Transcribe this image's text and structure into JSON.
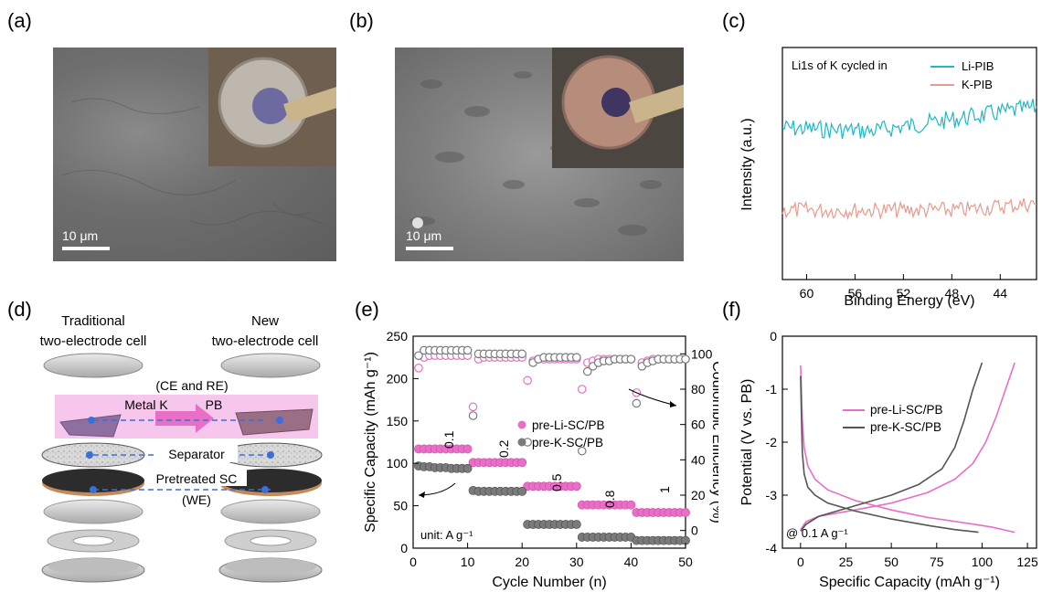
{
  "panels": {
    "a": {
      "label": "(a)",
      "scale": "10 μm"
    },
    "b": {
      "label": "(b)",
      "scale": "10 μm"
    },
    "c": {
      "label": "(c)"
    },
    "d": {
      "label": "(d)"
    },
    "e": {
      "label": "(e)"
    },
    "f": {
      "label": "(f)"
    }
  },
  "diagram": {
    "traditional": "Traditional",
    "traditional2": "two-electrode cell",
    "new": "New",
    "new2": "two-electrode cell",
    "ce_re": "(CE and RE)",
    "metal_k": "Metal K",
    "pb": "PB",
    "separator": "Separator",
    "pretreated": "Pretreated SC",
    "we": "(WE)"
  },
  "chart_data": [
    {
      "id": "c",
      "type": "line",
      "title": "Li1s of K cycled in",
      "xlabel": "Binding Energy (eV)",
      "ylabel": "Intensity (a.u.)",
      "xlim": [
        62,
        41
      ],
      "x_ticks": [
        60,
        56,
        52,
        48,
        44
      ],
      "series": [
        {
          "name": "Li-PIB",
          "color": "#1fb8c3"
        },
        {
          "name": "K-PIB",
          "color": "#e59b8e"
        }
      ]
    },
    {
      "id": "e",
      "type": "scatter",
      "xlabel": "Cycle Number (n)",
      "ylabel": "Specific Capacity (mAh g⁻¹)",
      "ylabel2": "Coulombic Efficiency (%)",
      "xlim": [
        0,
        50
      ],
      "ylim": [
        0,
        250
      ],
      "y2lim": [
        -10,
        110
      ],
      "x_ticks": [
        0,
        10,
        20,
        30,
        40,
        50
      ],
      "y_ticks": [
        0,
        50,
        100,
        150,
        200,
        250
      ],
      "y2_ticks": [
        0,
        20,
        40,
        60,
        80,
        100
      ],
      "rate_labels": [
        "0.1",
        "0.2",
        "0.5",
        "0.8",
        "1"
      ],
      "unit_note": "unit: A g⁻¹",
      "series": [
        {
          "name": "pre-Li-SC/PB",
          "color": "#e86fc6",
          "capacity": [
            117,
            117,
            117,
            117,
            117,
            117,
            117,
            117,
            117,
            117,
            101,
            101,
            101,
            101,
            101,
            101,
            101,
            101,
            101,
            101,
            73,
            73,
            73,
            73,
            73,
            73,
            73,
            73,
            73,
            73,
            51,
            51,
            51,
            51,
            51,
            51,
            51,
            51,
            51,
            51,
            42,
            42,
            42,
            42,
            42,
            42,
            42,
            42,
            42,
            42
          ],
          "ce": [
            92,
            98,
            99,
            99,
            99,
            99,
            99,
            99,
            99,
            99,
            70,
            97,
            98,
            98,
            98,
            98,
            98,
            98,
            98,
            98,
            85,
            96,
            97,
            97,
            97,
            97,
            97,
            97,
            97,
            97,
            80,
            95,
            96,
            97,
            97,
            97,
            97,
            97,
            97,
            97,
            78,
            95,
            96,
            97,
            97,
            97,
            97,
            97,
            97,
            97
          ]
        },
        {
          "name": "pre-K-SC/PB",
          "color": "#7a7a7a",
          "capacity": [
            97,
            96,
            96,
            95,
            95,
            95,
            94,
            94,
            94,
            94,
            68,
            67,
            67,
            67,
            67,
            67,
            67,
            67,
            67,
            67,
            28,
            28,
            28,
            28,
            28,
            28,
            28,
            28,
            28,
            28,
            13,
            13,
            13,
            13,
            13,
            13,
            13,
            13,
            13,
            13,
            9,
            9,
            9,
            9,
            9,
            9,
            9,
            9,
            9,
            9
          ],
          "ce": [
            99,
            102,
            102,
            102,
            102,
            102,
            102,
            102,
            102,
            102,
            65,
            100,
            100,
            100,
            100,
            100,
            100,
            100,
            100,
            100,
            50,
            95,
            97,
            98,
            98,
            98,
            98,
            98,
            98,
            98,
            45,
            90,
            93,
            95,
            96,
            96,
            97,
            97,
            97,
            97,
            72,
            93,
            95,
            96,
            97,
            97,
            97,
            97,
            97,
            97
          ]
        }
      ]
    },
    {
      "id": "f",
      "type": "line",
      "xlabel": "Specific Capacity (mAh g⁻¹)",
      "ylabel": "Potential (V vs. PB)",
      "xlim": [
        -10,
        130
      ],
      "ylim": [
        -4,
        0
      ],
      "x_ticks": [
        0,
        25,
        50,
        75,
        100,
        125
      ],
      "y_ticks": [
        0,
        -1,
        -2,
        -3,
        -4
      ],
      "note": "@ 0.1 A g⁻¹",
      "series": [
        {
          "name": "pre-Li-SC/PB",
          "color": "#e86fc6",
          "discharge": [
            [
              0,
              -0.55
            ],
            [
              0.5,
              -1.0
            ],
            [
              1,
              -1.6
            ],
            [
              2,
              -2.1
            ],
            [
              4,
              -2.45
            ],
            [
              8,
              -2.7
            ],
            [
              15,
              -2.9
            ],
            [
              30,
              -3.1
            ],
            [
              50,
              -3.28
            ],
            [
              70,
              -3.42
            ],
            [
              90,
              -3.52
            ],
            [
              105,
              -3.6
            ],
            [
              118,
              -3.7
            ]
          ],
          "charge": [
            [
              0,
              -3.65
            ],
            [
              3,
              -3.5
            ],
            [
              10,
              -3.4
            ],
            [
              30,
              -3.28
            ],
            [
              50,
              -3.15
            ],
            [
              70,
              -2.95
            ],
            [
              85,
              -2.7
            ],
            [
              95,
              -2.4
            ],
            [
              102,
              -2.0
            ],
            [
              108,
              -1.5
            ],
            [
              113,
              -1.0
            ],
            [
              118,
              -0.5
            ]
          ]
        },
        {
          "name": "pre-K-SC/PB",
          "color": "#555555",
          "discharge": [
            [
              0,
              -0.75
            ],
            [
              0.5,
              -1.5
            ],
            [
              1,
              -2.2
            ],
            [
              2,
              -2.6
            ],
            [
              4,
              -2.85
            ],
            [
              8,
              -3.0
            ],
            [
              15,
              -3.15
            ],
            [
              30,
              -3.3
            ],
            [
              50,
              -3.45
            ],
            [
              70,
              -3.57
            ],
            [
              85,
              -3.65
            ],
            [
              98,
              -3.7
            ]
          ],
          "charge": [
            [
              0,
              -3.68
            ],
            [
              3,
              -3.55
            ],
            [
              10,
              -3.4
            ],
            [
              30,
              -3.2
            ],
            [
              50,
              -3.0
            ],
            [
              65,
              -2.8
            ],
            [
              78,
              -2.5
            ],
            [
              85,
              -2.1
            ],
            [
              90,
              -1.6
            ],
            [
              95,
              -1.0
            ],
            [
              100,
              -0.5
            ]
          ]
        }
      ]
    }
  ]
}
